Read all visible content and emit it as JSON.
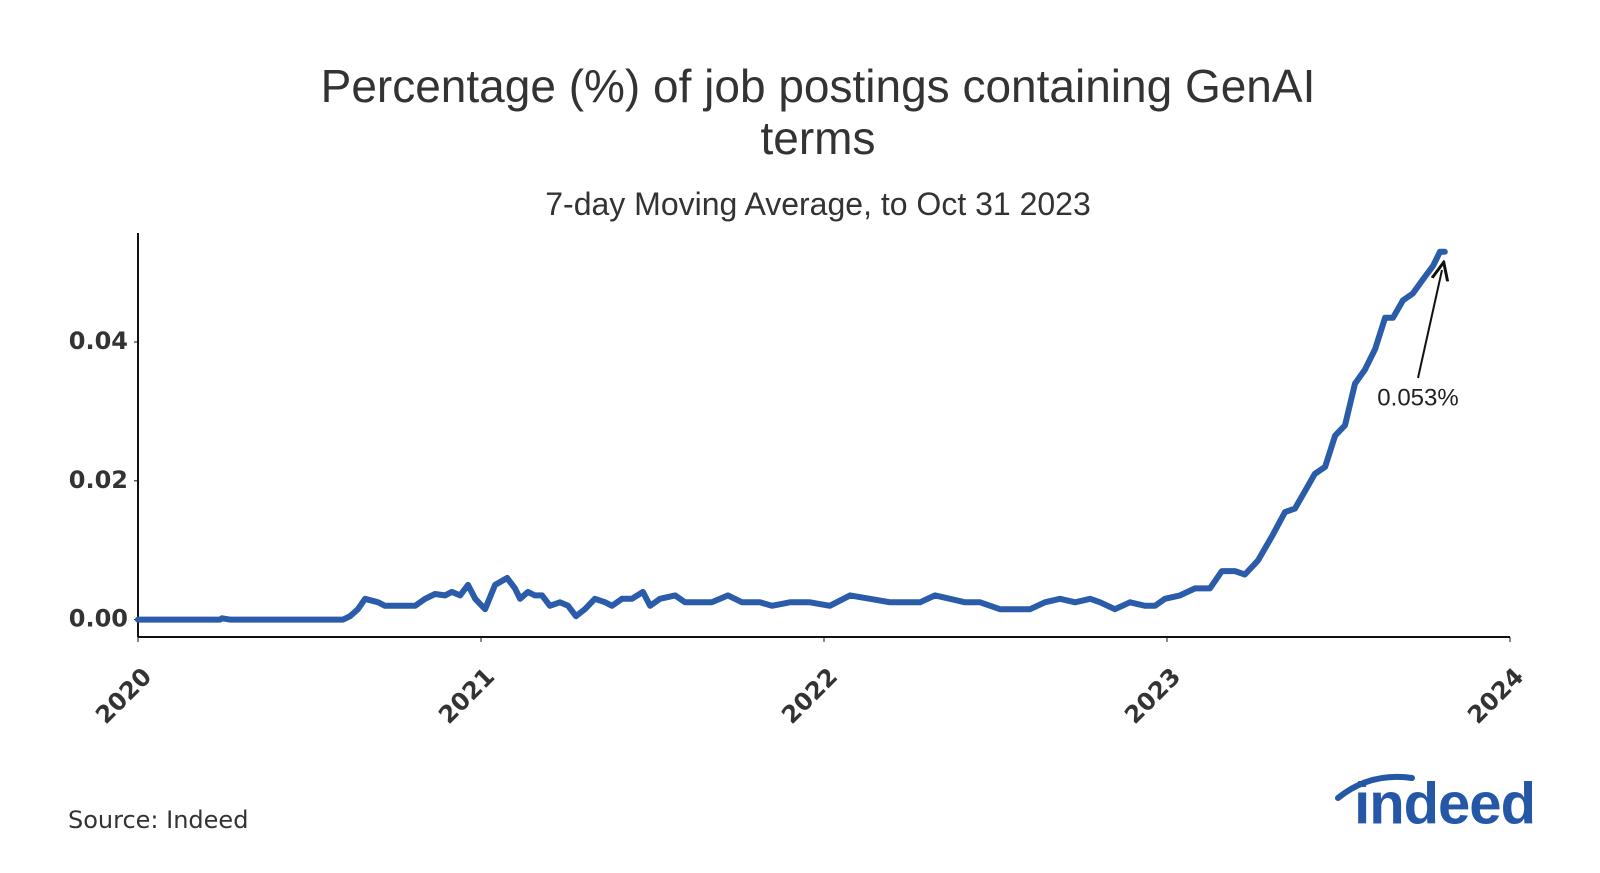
{
  "chart_data": {
    "type": "line",
    "title": "Percentage (%) of job postings containing GenAI terms",
    "subtitle": "7-day Moving Average, to Oct 31 2023",
    "annotation": {
      "text": "0.053%"
    },
    "source": "Source: Indeed",
    "color": "#2a5caa",
    "x": [
      2020.0,
      2020.239,
      2020.245,
      2020.268,
      2020.598,
      2020.618,
      2020.641,
      2020.662,
      2020.7,
      2020.72,
      2020.764,
      2020.808,
      2020.837,
      2020.866,
      2020.895,
      2020.915,
      2020.939,
      2020.962,
      2020.983,
      2021.012,
      2021.041,
      2021.076,
      2021.099,
      2021.114,
      2021.137,
      2021.157,
      2021.178,
      2021.201,
      2021.23,
      2021.254,
      2021.277,
      2021.303,
      2021.332,
      2021.362,
      2021.382,
      2021.411,
      2021.44,
      2021.472,
      2021.493,
      2021.522,
      2021.566,
      2021.595,
      2021.638,
      2021.673,
      2021.72,
      2021.761,
      2021.813,
      2021.848,
      2021.901,
      2021.959,
      2022.017,
      2022.076,
      2022.134,
      2022.192,
      2022.236,
      2022.28,
      2022.324,
      2022.367,
      2022.411,
      2022.455,
      2022.513,
      2022.557,
      2022.601,
      2022.644,
      2022.688,
      2022.732,
      2022.776,
      2022.805,
      2022.848,
      2022.892,
      2022.936,
      2022.965,
      2022.994,
      2023.038,
      2023.082,
      2023.125,
      2023.16,
      2023.198,
      2023.227,
      2023.265,
      2023.306,
      2023.344,
      2023.373,
      2023.402,
      2023.431,
      2023.461,
      2023.49,
      2023.519,
      2023.548,
      2023.577,
      2023.607,
      2023.636,
      2023.659,
      2023.688,
      2023.717,
      2023.746,
      2023.776,
      2023.796,
      2023.81
    ],
    "values": [
      0,
      0,
      0.0002,
      0,
      0,
      0.0005,
      0.0015,
      0.003,
      0.0025,
      0.002,
      0.002,
      0.002,
      0.003,
      0.0037,
      0.0035,
      0.004,
      0.0035,
      0.005,
      0.003,
      0.0015,
      0.005,
      0.006,
      0.0045,
      0.003,
      0.004,
      0.0035,
      0.0035,
      0.002,
      0.0025,
      0.002,
      0.0005,
      0.0015,
      0.003,
      0.0025,
      0.002,
      0.003,
      0.003,
      0.004,
      0.002,
      0.003,
      0.0035,
      0.0025,
      0.0025,
      0.0025,
      0.0035,
      0.0025,
      0.0025,
      0.002,
      0.0025,
      0.0025,
      0.002,
      0.0035,
      0.003,
      0.0025,
      0.0025,
      0.0025,
      0.0035,
      0.003,
      0.0025,
      0.0025,
      0.0015,
      0.0015,
      0.0015,
      0.0025,
      0.003,
      0.0025,
      0.003,
      0.0025,
      0.0015,
      0.0025,
      0.002,
      0.002,
      0.003,
      0.0035,
      0.0045,
      0.0045,
      0.007,
      0.007,
      0.0065,
      0.0085,
      0.012,
      0.0155,
      0.016,
      0.0185,
      0.021,
      0.022,
      0.0265,
      0.028,
      0.034,
      0.036,
      0.039,
      0.0435,
      0.0435,
      0.046,
      0.047,
      0.049,
      0.051,
      0.053,
      0.053
    ],
    "xlim": [
      2020,
      2024
    ],
    "xticks": [
      2020,
      2021,
      2022,
      2023,
      2024
    ],
    "ylim": [
      -0.0025,
      0.0557
    ],
    "yticks": [
      {
        "value": 0,
        "label": "0.00"
      },
      {
        "value": 0.02,
        "label": "0.02"
      },
      {
        "value": 0.04,
        "label": "0.04"
      }
    ],
    "grid": false
  },
  "logo": "indeed"
}
